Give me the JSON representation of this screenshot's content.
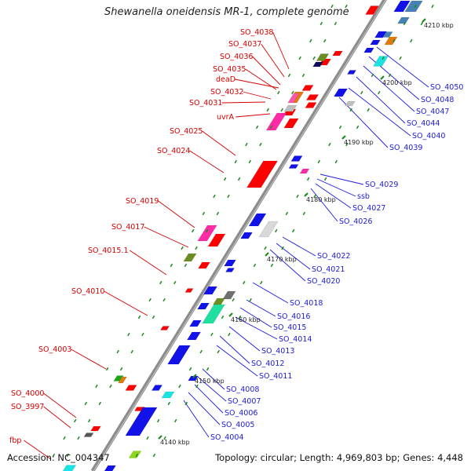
{
  "title": "Shewanella oneidensis MR-1, complete genome",
  "footer": {
    "accession": "Accession: NC_004347",
    "topology": "Topology: circular; Length: 4,969,803 bp; Genes: 4,448"
  },
  "colors": {
    "backbone": "#8c8c8c",
    "forward_label": "#d40000",
    "reverse_label": "#1c1cd8",
    "tick": "#1f8a1f"
  },
  "ticks": [
    "4140 kbp",
    "4150 kbp",
    "4160 kbp",
    "4170 kbp",
    "4180 kbp",
    "4190 kbp",
    "4200 kbp",
    "4210 kbp"
  ],
  "left_labels": [
    "SO_4038",
    "SO_4037",
    "SO_4036",
    "SO_4035",
    "deaD",
    "SO_4032",
    "SO_4031",
    "uvrA",
    "SO_4025",
    "SO_4024",
    "SO_4019",
    "SO_4017",
    "SO_4015.1",
    "SO_4010",
    "SO_4003",
    "SO_4000",
    "SO_3997",
    "fbp"
  ],
  "right_labels": [
    "SO_4050",
    "SO_4048",
    "SO_4047",
    "SO_4044",
    "SO_4040",
    "SO_4039",
    "SO_4029",
    "ssb",
    "SO_4027",
    "SO_4026",
    "SO_4022",
    "SO_4021",
    "SO_4020",
    "SO_4018",
    "SO_4016",
    "SO_4015",
    "SO_4014",
    "SO_4013",
    "SO_4012",
    "SO_4011",
    "SO_4008",
    "SO_4007",
    "SO_4006",
    "SO_4005",
    "SO_4004"
  ]
}
